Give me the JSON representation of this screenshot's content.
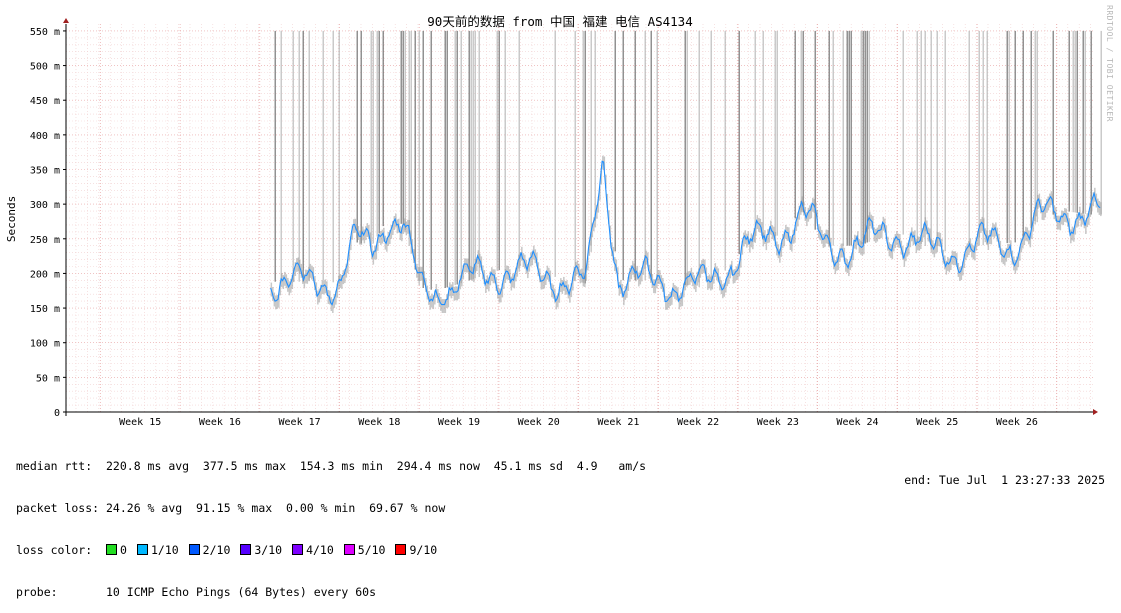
{
  "chart_data": {
    "type": "line",
    "title": "90天前的数据 from 中国 福建 电信 AS4134",
    "ylabel": "Seconds",
    "xlabel": "",
    "ylim": [
      0,
      0.56
    ],
    "y_ticks": [
      {
        "value": 0,
        "label": "0"
      },
      {
        "value": 0.05,
        "label": "50 m"
      },
      {
        "value": 0.1,
        "label": "100 m"
      },
      {
        "value": 0.15,
        "label": "150 m"
      },
      {
        "value": 0.2,
        "label": "200 m"
      },
      {
        "value": 0.25,
        "label": "250 m"
      },
      {
        "value": 0.3,
        "label": "300 m"
      },
      {
        "value": 0.35,
        "label": "350 m"
      },
      {
        "value": 0.4,
        "label": "400 m"
      },
      {
        "value": 0.45,
        "label": "450 m"
      },
      {
        "value": 0.5,
        "label": "500 m"
      },
      {
        "value": 0.55,
        "label": "550 m"
      }
    ],
    "x_ticks": [
      "Week 15",
      "Week 16",
      "Week 17",
      "Week 18",
      "Week 19",
      "Week 20",
      "Week 21",
      "Week 22",
      "Week 23",
      "Week 24",
      "Week 25",
      "Week 26"
    ],
    "grid": true,
    "series": [
      {
        "name": "median rtt",
        "x": [
          "Week 17",
          "Week 17.3",
          "Week 17.5",
          "Week 17.7",
          "Week 17.9",
          "Week 18.1",
          "Week 18.3",
          "Week 18.5",
          "Week 18.7",
          "Week 19",
          "Week 19.5",
          "Week 20",
          "Week 20.4",
          "Week 20.6",
          "Week 20.8",
          "Week 21",
          "Week 21.5",
          "Week 22",
          "Week 22.3",
          "Week 22.6",
          "Week 23",
          "Week 23.3",
          "Week 23.6",
          "Week 24",
          "Week 24.5",
          "Week 25",
          "Week 25.5",
          "Week 26",
          "Week 26.3",
          "Week 26.6",
          "Week 26.9"
        ],
        "values": [
          0.188,
          0.19,
          0.185,
          0.245,
          0.24,
          0.28,
          0.27,
          0.18,
          0.175,
          0.185,
          0.205,
          0.2,
          0.19,
          0.185,
          0.365,
          0.19,
          0.19,
          0.18,
          0.2,
          0.24,
          0.255,
          0.29,
          0.24,
          0.24,
          0.26,
          0.23,
          0.24,
          0.245,
          0.28,
          0.29,
          0.285
        ]
      }
    ],
    "loss_spike_note": "vertical grey bars indicate packet loss"
  },
  "stats": {
    "median_rtt": "median rtt:  220.8 ms avg  377.5 ms max  154.3 ms min  294.4 ms now  45.1 ms sd  4.9   am/s",
    "packet_loss": "packet loss: 24.26 % avg  91.15 % max  0.00 % min  69.67 % now",
    "loss_color_label": "loss color:",
    "probe": "probe:       10 ICMP Echo Pings (64 Bytes) every 60s",
    "end": "end: Tue Jul  1 23:27:33 2025"
  },
  "loss_colors": [
    {
      "label": "0",
      "color": "#22dd22"
    },
    {
      "label": "1/10",
      "color": "#00b8ff"
    },
    {
      "label": "2/10",
      "color": "#0059ff"
    },
    {
      "label": "3/10",
      "color": "#5500ff"
    },
    {
      "label": "4/10",
      "color": "#7e00ff"
    },
    {
      "label": "5/10",
      "color": "#dd00ff"
    },
    {
      "label": "9/10",
      "color": "#ff0000"
    }
  ],
  "watermark": "RRDTOOL / TOBI OETIKER"
}
